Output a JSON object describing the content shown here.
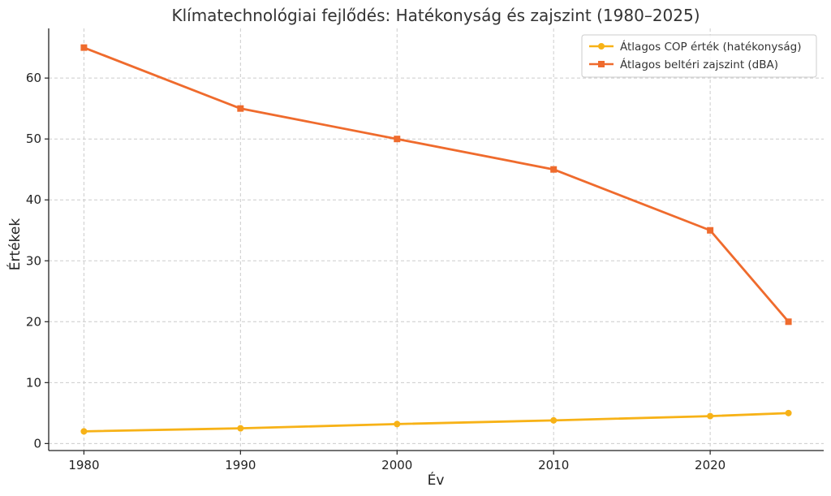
{
  "chart_data": {
    "type": "line",
    "title": "Klímatechnológiai fejlődés: Hatékonyság és zajszint (1980–2025)",
    "xlabel": "Év",
    "ylabel": "Értékek",
    "x": [
      1980,
      1990,
      2000,
      2010,
      2020,
      2025
    ],
    "xticks": [
      1980,
      1990,
      2000,
      2010,
      2020
    ],
    "yticks": [
      0,
      10,
      20,
      30,
      40,
      50,
      60
    ],
    "xlim": [
      1977.75,
      2027.25
    ],
    "ylim": [
      -1.15,
      68.15
    ],
    "grid": true,
    "legend_position": "top-right",
    "series": [
      {
        "name": "Átlagos COP érték (hatékonyság)",
        "values": [
          2.0,
          2.5,
          3.2,
          3.8,
          4.5,
          5.0
        ],
        "color": "#f7b217",
        "marker": "circle"
      },
      {
        "name": "Átlagos beltéri zajszint (dBA)",
        "values": [
          65,
          55,
          50,
          45,
          35,
          20
        ],
        "color": "#ef6b2d",
        "marker": "square"
      }
    ]
  }
}
